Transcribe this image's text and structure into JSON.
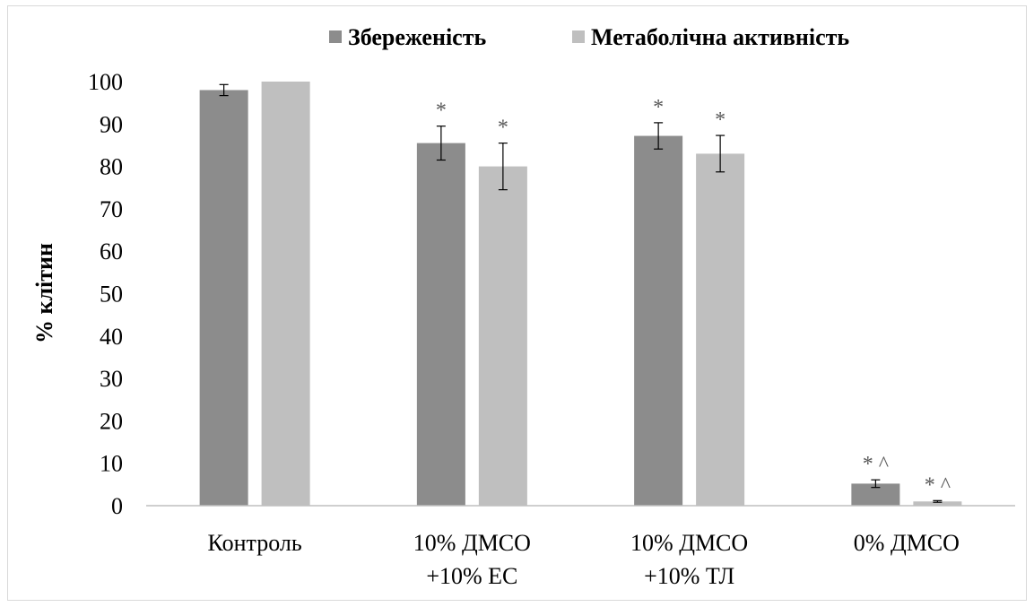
{
  "chart_data": {
    "type": "bar",
    "title": "",
    "xlabel": "",
    "ylabel": "% клітин",
    "ylim": [
      0,
      100
    ],
    "yticks": [
      0,
      10,
      20,
      30,
      40,
      50,
      60,
      70,
      80,
      90,
      100
    ],
    "grid": false,
    "legend_position": "top",
    "categories": [
      [
        "Контроль"
      ],
      [
        "10% ДМСО",
        "+10% ЕС"
      ],
      [
        "10% ДМСО",
        "+10% ТЛ"
      ],
      [
        "0% ДМСО"
      ]
    ],
    "series": [
      {
        "name": "Збереженість",
        "color": "#8c8c8c",
        "values": [
          98,
          85.5,
          87.2,
          5.2
        ],
        "errors": [
          1.3,
          4,
          3.1,
          0.9
        ],
        "annotations": [
          "",
          "*",
          "*",
          "* ^"
        ]
      },
      {
        "name": "Метаболічна активність",
        "color": "#bfbfbf",
        "values": [
          100,
          80,
          83,
          1
        ],
        "errors": [
          0,
          5.5,
          4.3,
          0.2
        ],
        "annotations": [
          "",
          "*",
          "*",
          "* ^"
        ]
      }
    ]
  }
}
